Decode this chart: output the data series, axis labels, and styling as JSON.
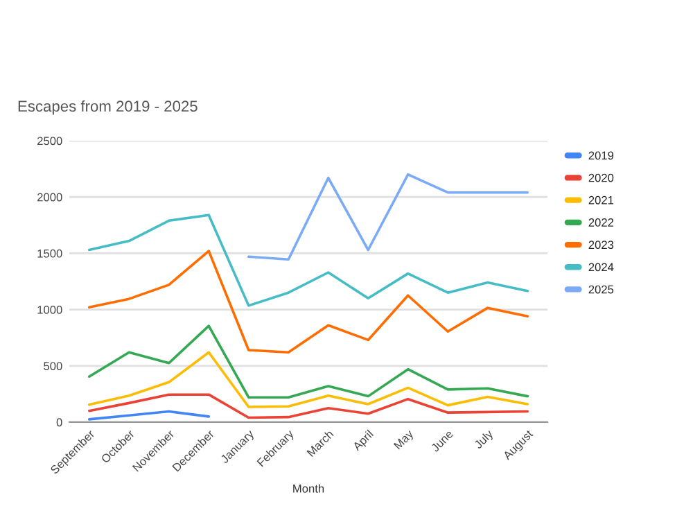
{
  "chart_data": {
    "type": "line",
    "title": "Escapes from 2019 - 2025",
    "xlabel": "Month",
    "categories": [
      "September",
      "October",
      "November",
      "December",
      "January",
      "February",
      "March",
      "April",
      "May",
      "June",
      "July",
      "August"
    ],
    "series": [
      {
        "name": "2019",
        "color": "#4285f4",
        "values": [
          25,
          60,
          95,
          50,
          null,
          null,
          null,
          null,
          null,
          null,
          null,
          null
        ]
      },
      {
        "name": "2020",
        "color": "#ea4335",
        "values": [
          100,
          170,
          245,
          245,
          40,
          45,
          125,
          75,
          205,
          85,
          90,
          95
        ]
      },
      {
        "name": "2021",
        "color": "#fbbc04",
        "values": [
          155,
          235,
          355,
          620,
          135,
          140,
          235,
          160,
          305,
          150,
          225,
          160
        ]
      },
      {
        "name": "2022",
        "color": "#34a853",
        "values": [
          405,
          620,
          525,
          855,
          220,
          220,
          320,
          230,
          470,
          290,
          300,
          230
        ]
      },
      {
        "name": "2023",
        "color": "#ff6d01",
        "values": [
          1020,
          1095,
          1220,
          1520,
          640,
          620,
          860,
          730,
          1125,
          805,
          1015,
          940
        ]
      },
      {
        "name": "2024",
        "color": "#46bdc6",
        "values": [
          1530,
          1610,
          1790,
          1840,
          1035,
          1150,
          1330,
          1100,
          1320,
          1150,
          1240,
          1165
        ]
      },
      {
        "name": "2025",
        "color": "#7baaf7",
        "values": [
          null,
          null,
          null,
          null,
          1470,
          1445,
          2170,
          1530,
          2200,
          2040,
          2040,
          2040
        ]
      }
    ],
    "ylim": [
      0,
      2500
    ],
    "yticks": [
      0,
      500,
      1000,
      1500,
      2000,
      2500
    ],
    "grid": "y",
    "legend": "top right",
    "marker": "none",
    "line_style": "solid"
  }
}
